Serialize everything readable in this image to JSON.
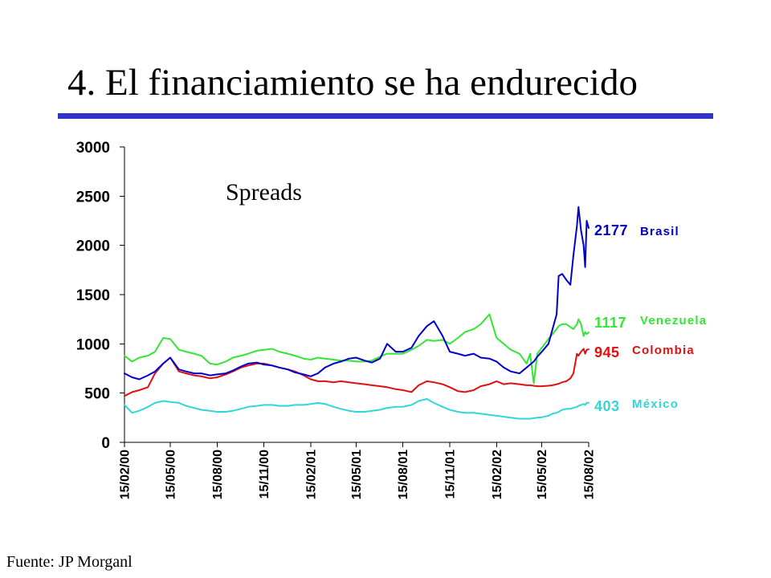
{
  "slide": {
    "title": "4. El financiamiento se ha endurecido",
    "footer": "Fuente: JP Morganl",
    "accent_color": "#3333cc"
  },
  "chart_data": {
    "type": "line",
    "annotation": "Spreads",
    "ylim": [
      0,
      3000
    ],
    "y_ticks": [
      0,
      500,
      1000,
      1500,
      2000,
      2500,
      3000
    ],
    "x_tick_labels": [
      "15/02/00",
      "15/05/00",
      "15/08/00",
      "15/11/00",
      "15/02/01",
      "15/05/01",
      "15/08/01",
      "15/11/01",
      "15/02/02",
      "15/05/02",
      "15/08/02"
    ],
    "grid": false,
    "x": [
      "2000-02-15",
      "2000-03-01",
      "2000-03-15",
      "2000-04-01",
      "2000-04-15",
      "2000-05-01",
      "2000-05-15",
      "2000-06-01",
      "2000-06-15",
      "2000-07-01",
      "2000-07-15",
      "2000-08-01",
      "2000-08-15",
      "2000-09-01",
      "2000-09-15",
      "2000-10-01",
      "2000-10-15",
      "2000-11-01",
      "2000-11-15",
      "2000-12-01",
      "2000-12-15",
      "2001-01-01",
      "2001-01-15",
      "2001-02-01",
      "2001-02-15",
      "2001-03-01",
      "2001-03-15",
      "2001-04-01",
      "2001-04-15",
      "2001-05-01",
      "2001-05-15",
      "2001-06-01",
      "2001-06-15",
      "2001-07-01",
      "2001-07-15",
      "2001-08-01",
      "2001-08-15",
      "2001-09-01",
      "2001-09-15",
      "2001-10-01",
      "2001-10-15",
      "2001-11-01",
      "2001-11-15",
      "2001-12-01",
      "2001-12-15",
      "2002-01-01",
      "2002-01-15",
      "2002-02-01",
      "2002-02-15",
      "2002-03-01",
      "2002-03-15",
      "2002-04-01",
      "2002-04-15",
      "2002-04-22",
      "2002-04-29",
      "2002-05-06",
      "2002-05-15",
      "2002-05-28",
      "2002-06-05",
      "2002-06-13",
      "2002-06-17",
      "2002-06-24",
      "2002-07-02",
      "2002-07-10",
      "2002-07-16",
      "2002-07-23",
      "2002-07-26",
      "2002-07-31",
      "2002-08-05",
      "2002-08-08",
      "2002-08-11",
      "2002-08-15"
    ],
    "series": [
      {
        "name": "Brasil",
        "color": "#0000cc",
        "end_label": "2177",
        "values": [
          700,
          660,
          640,
          680,
          720,
          800,
          860,
          740,
          720,
          700,
          700,
          680,
          690,
          700,
          730,
          770,
          800,
          810,
          790,
          780,
          760,
          740,
          710,
          690,
          670,
          700,
          760,
          800,
          820,
          850,
          860,
          830,
          810,
          850,
          1000,
          920,
          920,
          960,
          1080,
          1180,
          1230,
          1080,
          920,
          900,
          880,
          900,
          860,
          850,
          820,
          760,
          720,
          700,
          760,
          790,
          820,
          870,
          920,
          1000,
          1150,
          1300,
          1690,
          1710,
          1650,
          1600,
          1900,
          2200,
          2390,
          2150,
          2000,
          1780,
          2250,
          2177
        ]
      },
      {
        "name": "Venezuela",
        "color": "#33e633",
        "end_label": "1117",
        "values": [
          880,
          820,
          860,
          880,
          920,
          1060,
          1050,
          940,
          920,
          900,
          880,
          800,
          790,
          820,
          860,
          880,
          900,
          930,
          940,
          950,
          920,
          900,
          880,
          850,
          840,
          860,
          850,
          840,
          830,
          830,
          820,
          820,
          830,
          870,
          900,
          900,
          900,
          940,
          980,
          1040,
          1030,
          1040,
          1000,
          1060,
          1120,
          1150,
          1200,
          1300,
          1060,
          1000,
          940,
          900,
          800,
          900,
          600,
          900,
          960,
          1050,
          1100,
          1150,
          1180,
          1200,
          1200,
          1170,
          1150,
          1200,
          1250,
          1200,
          1080,
          1120,
          1100,
          1117
        ]
      },
      {
        "name": "Colombia",
        "color": "#e01010",
        "end_label": "945",
        "values": [
          470,
          510,
          530,
          560,
          700,
          800,
          860,
          720,
          700,
          680,
          670,
          650,
          660,
          690,
          720,
          760,
          780,
          800,
          800,
          780,
          760,
          740,
          720,
          680,
          640,
          620,
          620,
          610,
          620,
          610,
          600,
          590,
          580,
          570,
          560,
          540,
          530,
          510,
          580,
          620,
          610,
          590,
          560,
          520,
          510,
          530,
          570,
          590,
          620,
          590,
          600,
          590,
          580,
          580,
          575,
          570,
          570,
          575,
          580,
          590,
          595,
          610,
          620,
          650,
          700,
          900,
          880,
          920,
          950,
          900,
          940,
          945
        ]
      },
      {
        "name": "México",
        "color": "#33d6d6",
        "end_label": "403",
        "values": [
          380,
          300,
          320,
          360,
          400,
          420,
          410,
          400,
          370,
          350,
          330,
          320,
          310,
          310,
          320,
          340,
          360,
          370,
          380,
          380,
          370,
          370,
          380,
          380,
          390,
          400,
          390,
          360,
          340,
          320,
          310,
          310,
          320,
          330,
          350,
          360,
          360,
          380,
          420,
          440,
          400,
          360,
          330,
          310,
          300,
          300,
          290,
          280,
          270,
          260,
          250,
          240,
          240,
          240,
          245,
          250,
          255,
          270,
          290,
          300,
          310,
          330,
          340,
          340,
          350,
          360,
          370,
          380,
          390,
          380,
          400,
          403
        ]
      }
    ]
  }
}
